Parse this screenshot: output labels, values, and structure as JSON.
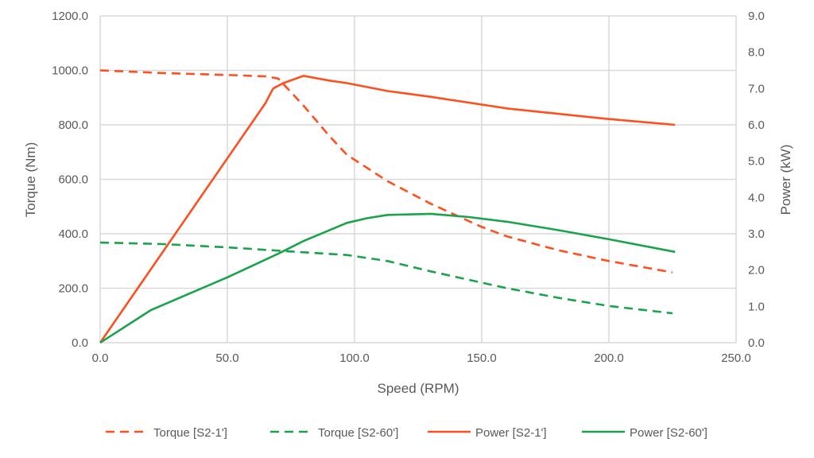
{
  "chart_data": {
    "type": "line",
    "title": "",
    "xlabel": "Speed (RPM)",
    "ylabel": "Torque (Nm)",
    "y2label": "Power (kW)",
    "xlim": [
      0,
      250
    ],
    "ylim": [
      0,
      1200
    ],
    "y2lim": [
      0,
      9
    ],
    "grid": true,
    "legend_placement": "bottom",
    "x_ticks": [
      "0.0",
      "50.0",
      "100.0",
      "150.0",
      "200.0",
      "250.0"
    ],
    "y_ticks": [
      "0.0",
      "200.0",
      "400.0",
      "600.0",
      "800.0",
      "1000.0",
      "1200.0"
    ],
    "y2_ticks": [
      "0.0",
      "1.0",
      "2.0",
      "3.0",
      "4.0",
      "5.0",
      "6.0",
      "7.0",
      "8.0",
      "9.0"
    ],
    "series": [
      {
        "name": "Torque [S2-1']",
        "axis": "left",
        "style": "dashed",
        "color": "#ff4f1f",
        "x": [
          0,
          25,
          50,
          65,
          70,
          80,
          90,
          97,
          113,
          130,
          150,
          160,
          180,
          200,
          225
        ],
        "y": [
          1000,
          990,
          983,
          978,
          970,
          870,
          760,
          690,
          593,
          510,
          425,
          390,
          340,
          300,
          258
        ]
      },
      {
        "name": "Torque [S2-60']",
        "axis": "left",
        "style": "dashed",
        "color": "#1aa34a",
        "x": [
          0,
          25,
          50,
          75,
          97,
          113,
          130,
          160,
          180,
          200,
          225
        ],
        "y": [
          368,
          362,
          350,
          335,
          322,
          300,
          262,
          200,
          165,
          135,
          108
        ]
      },
      {
        "name": "Power [S2-1']",
        "axis": "right",
        "style": "solid",
        "color": "#ff4f1f",
        "x": [
          0,
          65,
          68,
          72,
          80,
          90,
          97,
          113,
          130,
          160,
          200,
          226
        ],
        "y": [
          0,
          6.6,
          7.0,
          7.15,
          7.35,
          7.22,
          7.15,
          6.93,
          6.77,
          6.45,
          6.16,
          6.0
        ]
      },
      {
        "name": "Power [S2-60']",
        "axis": "right",
        "style": "solid",
        "color": "#1aa34a",
        "x": [
          0,
          20,
          50,
          70,
          80,
          97,
          105,
          113,
          130,
          145,
          160,
          180,
          200,
          226
        ],
        "y": [
          0,
          0.9,
          1.8,
          2.45,
          2.8,
          3.3,
          3.43,
          3.52,
          3.55,
          3.46,
          3.33,
          3.1,
          2.85,
          2.5
        ]
      }
    ]
  }
}
